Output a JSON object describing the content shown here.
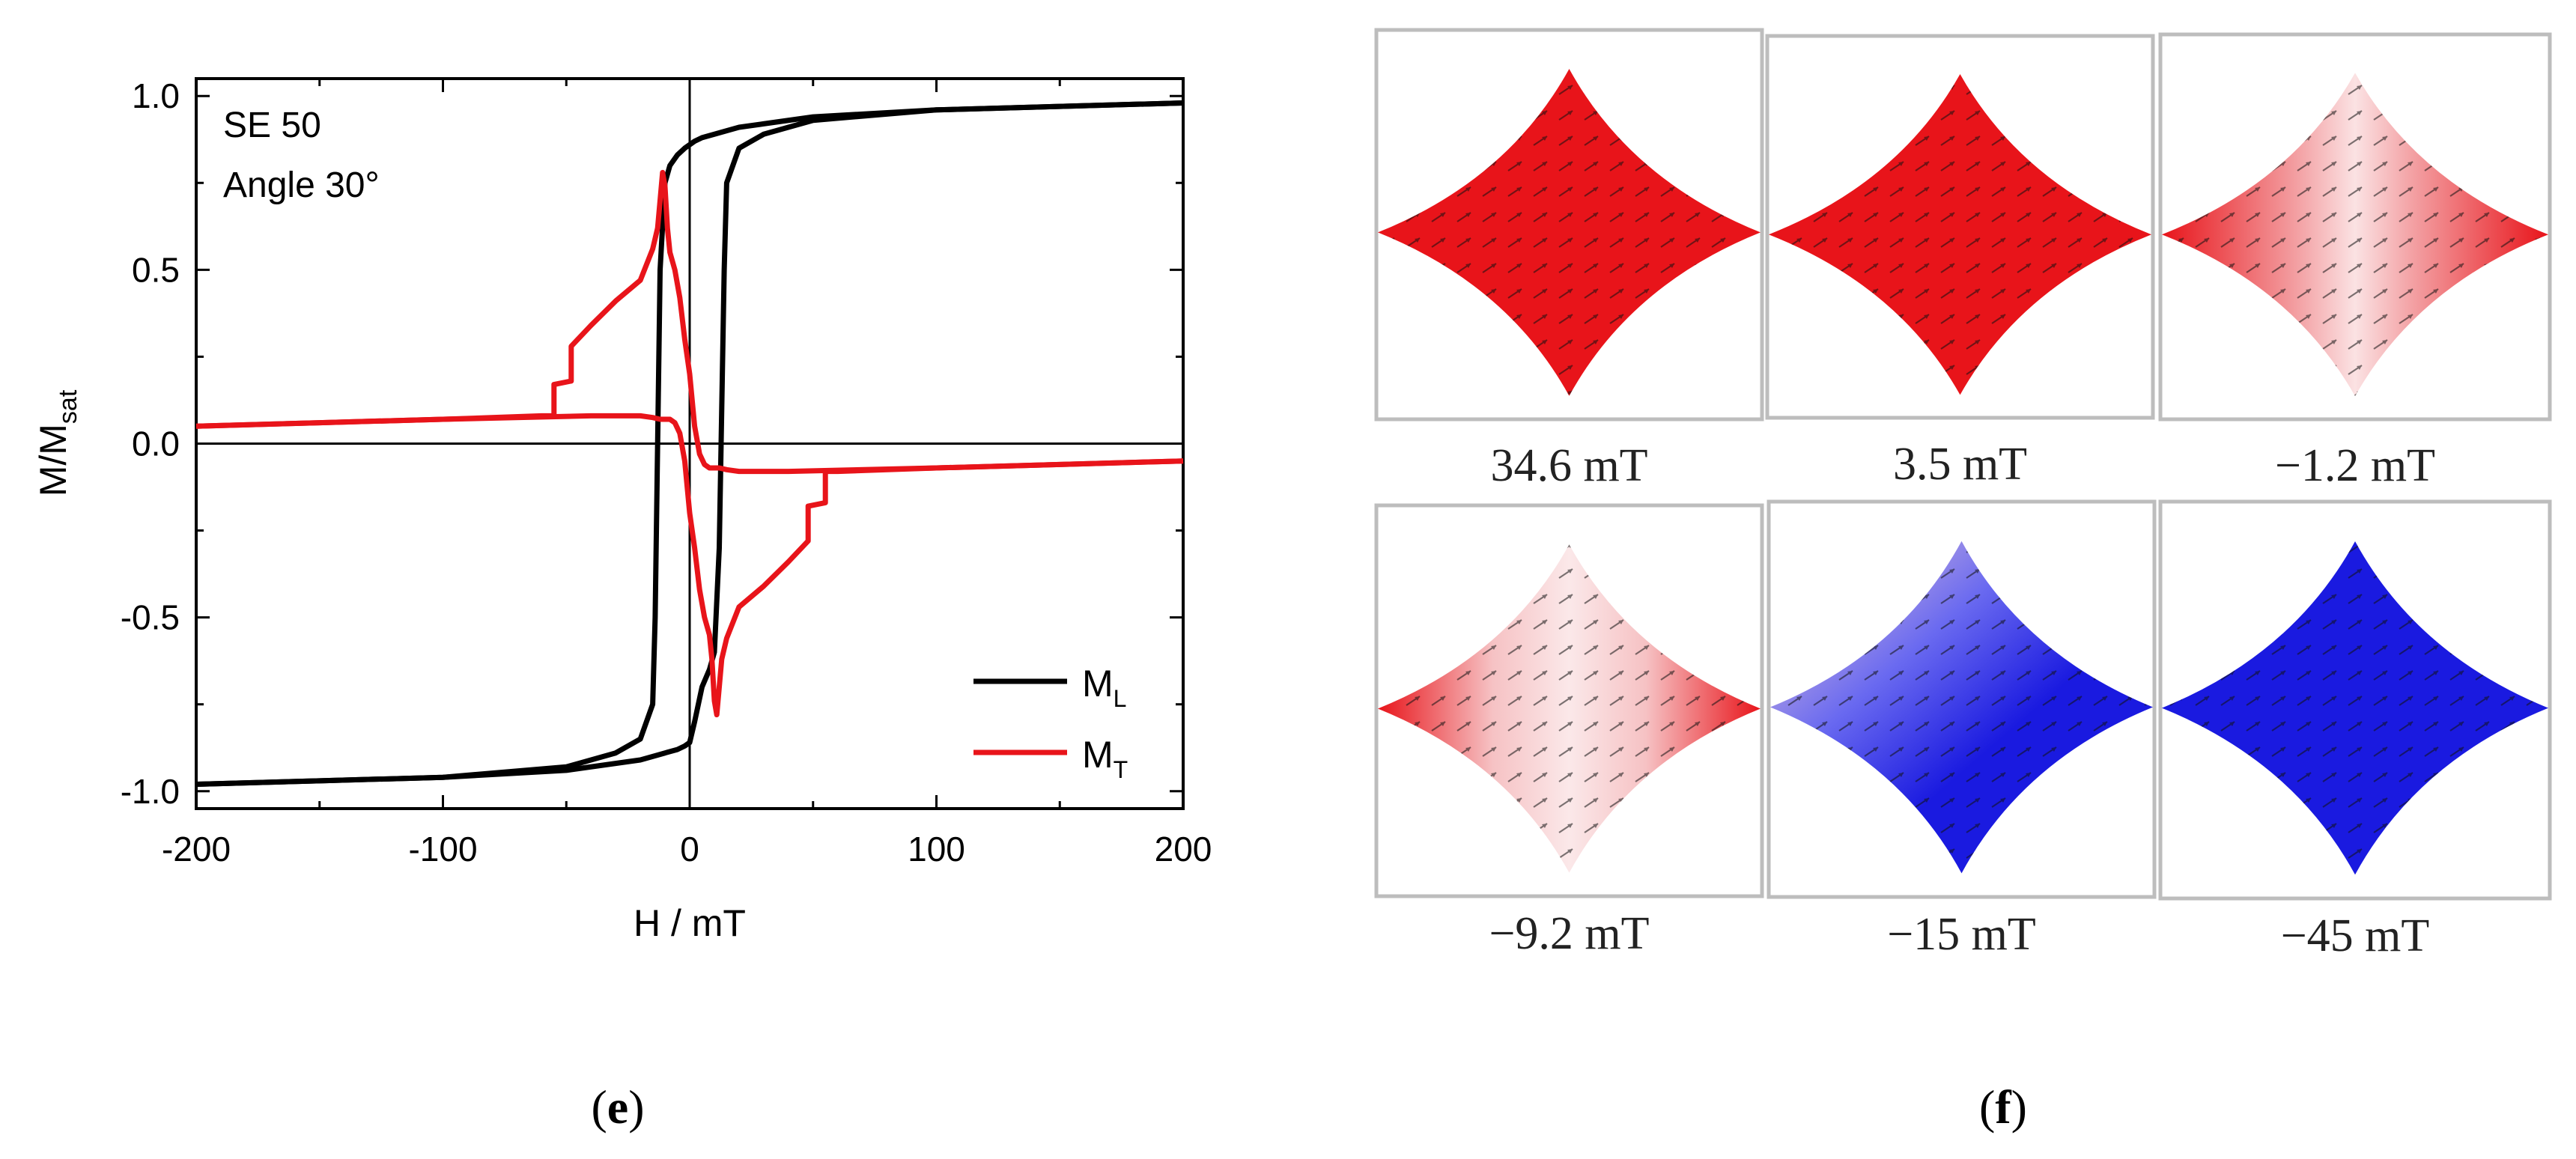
{
  "chart_data": {
    "type": "line",
    "annotation": {
      "line1": "SE 50",
      "line2": "Angle 30°"
    },
    "xlabel": "H / mT",
    "ylabel_main": "M/M",
    "ylabel_sub": "sat",
    "xlim": [
      -200,
      200
    ],
    "ylim": [
      -1.05,
      1.05
    ],
    "xticks": [
      -200,
      -100,
      0,
      100,
      200
    ],
    "xtick_labels": [
      "-200",
      "-100",
      "0",
      "100",
      "200"
    ],
    "yticks": [
      1.0,
      0.5,
      0.0,
      -0.5,
      -1.0
    ],
    "ytick_labels": [
      "1.0",
      "0.5",
      "0.0",
      "-0.5",
      "-1.0"
    ],
    "legend": {
      "position": "bottom-right"
    },
    "series": [
      {
        "name": "M_L",
        "label_main": "M",
        "label_sub": "L",
        "color": "#000000",
        "branches": [
          {
            "x": [
              200,
              150,
              100,
              50,
              30,
              20,
              15,
              10,
              5,
              2,
              0,
              -2,
              -5,
              -8,
              -10,
              -12,
              -13,
              -14,
              -15,
              -20,
              -30,
              -50,
              -100,
              -150,
              -200
            ],
            "y": [
              0.98,
              0.97,
              0.96,
              0.94,
              0.92,
              0.91,
              0.9,
              0.89,
              0.88,
              0.87,
              0.86,
              0.85,
              0.83,
              0.8,
              0.75,
              0.5,
              0.0,
              -0.5,
              -0.75,
              -0.85,
              -0.89,
              -0.93,
              -0.96,
              -0.97,
              -0.98
            ]
          },
          {
            "x": [
              -200,
              -150,
              -100,
              -50,
              -30,
              -20,
              -15,
              -10,
              -5,
              -2,
              0,
              2,
              5,
              8,
              10,
              12,
              13,
              14,
              15,
              20,
              30,
              50,
              100,
              150,
              200
            ],
            "y": [
              -0.98,
              -0.97,
              -0.96,
              -0.94,
              -0.92,
              -0.91,
              -0.9,
              -0.89,
              -0.88,
              -0.87,
              -0.86,
              -0.8,
              -0.7,
              -0.65,
              -0.6,
              -0.3,
              0.1,
              0.5,
              0.75,
              0.85,
              0.89,
              0.93,
              0.96,
              0.97,
              0.98
            ]
          }
        ]
      },
      {
        "name": "M_T",
        "label_main": "M",
        "label_sub": "T",
        "color": "#e8141a",
        "branches": [
          {
            "x": [
              -200,
              -150,
              -100,
              -60,
              -55,
              -55,
              -48,
              -48,
              -40,
              -30,
              -20,
              -15,
              -13,
              -12,
              -11,
              -10,
              -9,
              -8,
              -6,
              -4,
              -2,
              0,
              2,
              4,
              6,
              8,
              10,
              12,
              15,
              20,
              40,
              100,
              150,
              200
            ],
            "y": [
              0.05,
              0.06,
              0.07,
              0.08,
              0.08,
              0.17,
              0.18,
              0.28,
              0.34,
              0.41,
              0.47,
              0.56,
              0.62,
              0.7,
              0.78,
              0.74,
              0.62,
              0.55,
              0.5,
              0.42,
              0.3,
              0.2,
              0.05,
              -0.03,
              -0.06,
              -0.07,
              -0.07,
              -0.07,
              -0.075,
              -0.08,
              -0.08,
              -0.07,
              -0.06,
              -0.05
            ]
          },
          {
            "x": [
              200,
              150,
              100,
              60,
              55,
              55,
              48,
              48,
              40,
              30,
              20,
              15,
              13,
              12,
              11,
              10,
              9,
              8,
              6,
              4,
              2,
              0,
              -2,
              -4,
              -6,
              -8,
              -10,
              -12,
              -15,
              -20,
              -40,
              -100,
              -150,
              -200
            ],
            "y": [
              -0.05,
              -0.06,
              -0.07,
              -0.08,
              -0.08,
              -0.17,
              -0.18,
              -0.28,
              -0.34,
              -0.41,
              -0.47,
              -0.56,
              -0.62,
              -0.7,
              -0.78,
              -0.74,
              -0.62,
              -0.55,
              -0.5,
              -0.42,
              -0.3,
              -0.2,
              -0.05,
              0.03,
              0.06,
              0.07,
              0.07,
              0.07,
              0.075,
              0.08,
              0.08,
              0.07,
              0.06,
              0.05
            ]
          }
        ]
      }
    ],
    "panel_label": "e"
  },
  "simulation_panel": {
    "panel_label": "f",
    "description_colors": {
      "positive": "#e8141a",
      "negative": "#1a1ae0"
    },
    "snapshots": [
      {
        "field": "34.6 mT",
        "state": "red"
      },
      {
        "field": "3.5 mT",
        "state": "red"
      },
      {
        "field": "−1.2 mT",
        "state": "mixed-red"
      },
      {
        "field": "−9.2 mT",
        "state": "mixed"
      },
      {
        "field": "−15 mT",
        "state": "mostly-blue"
      },
      {
        "field": "−45 mT",
        "state": "blue"
      }
    ]
  },
  "panel_labels": {
    "e": "e",
    "f": "f"
  }
}
